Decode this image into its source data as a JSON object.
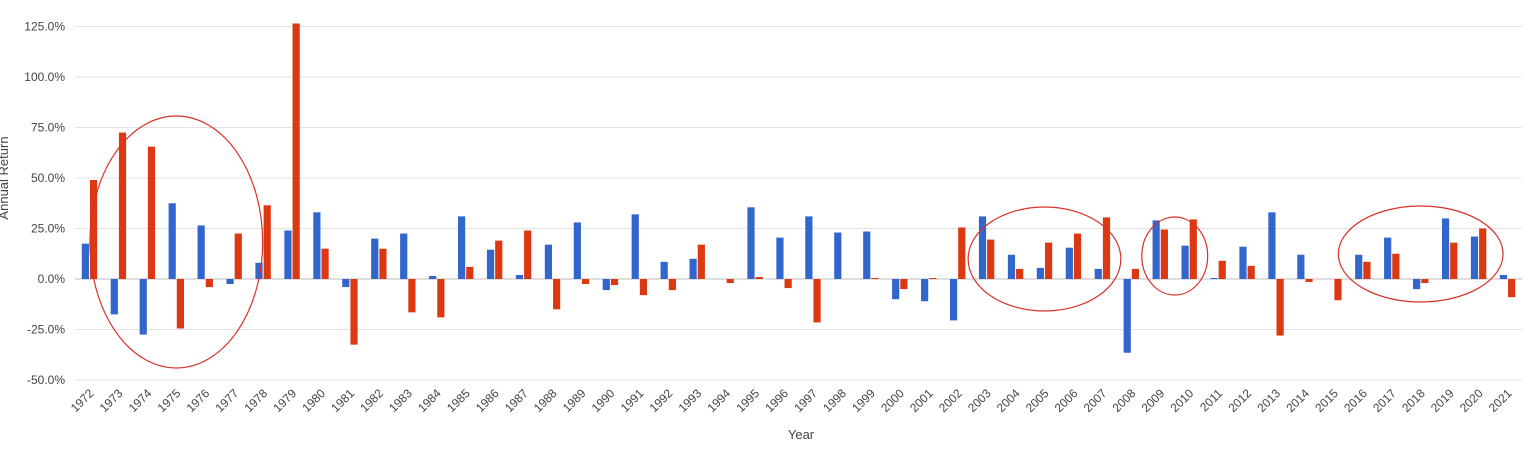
{
  "chart_data": {
    "type": "bar",
    "title": "",
    "xlabel": "Year",
    "ylabel": "Annual Return",
    "ylim": [
      -50,
      125
    ],
    "yticks": [
      "-50.0%",
      "-25.0%",
      "0.0%",
      "25.0%",
      "50.0%",
      "75.0%",
      "100.0%",
      "125.0%"
    ],
    "ytick_values": [
      -50,
      -25,
      0,
      25,
      50,
      75,
      100,
      125
    ],
    "grid": true,
    "categories": [
      "1972",
      "1973",
      "1974",
      "1975",
      "1976",
      "1977",
      "1978",
      "1979",
      "1980",
      "1981",
      "1982",
      "1983",
      "1984",
      "1985",
      "1986",
      "1987",
      "1988",
      "1989",
      "1990",
      "1991",
      "1992",
      "1993",
      "1994",
      "1995",
      "1996",
      "1997",
      "1998",
      "1999",
      "2000",
      "2001",
      "2002",
      "2003",
      "2004",
      "2005",
      "2006",
      "2007",
      "2008",
      "2009",
      "2010",
      "2011",
      "2012",
      "2013",
      "2014",
      "2015",
      "2016",
      "2017",
      "2018",
      "2019",
      "2020",
      "2021"
    ],
    "series": [
      {
        "color": "#3366cc",
        "values": [
          17.5,
          -17.5,
          -27.5,
          37.5,
          26.5,
          -2.5,
          8.0,
          24.0,
          33.0,
          -4.0,
          20.0,
          22.5,
          1.5,
          31.0,
          14.5,
          2.0,
          17.0,
          28.0,
          -5.5,
          32.0,
          8.5,
          10.0,
          0.0,
          35.5,
          20.5,
          31.0,
          23.0,
          23.5,
          -10.0,
          -11.0,
          -20.5,
          31.0,
          12.0,
          5.5,
          15.5,
          5.0,
          -36.5,
          29.0,
          16.5,
          0.5,
          16.0,
          33.0,
          12.0,
          0.0,
          12.0,
          20.5,
          -5.0,
          30.0,
          21.0,
          2.0
        ]
      },
      {
        "color": "#dc3912",
        "values": [
          49.0,
          72.5,
          65.5,
          -24.5,
          -4.0,
          22.5,
          36.5,
          126.5,
          15.0,
          -32.5,
          15.0,
          -16.5,
          -19.0,
          6.0,
          19.0,
          24.0,
          -15.0,
          -2.5,
          -3.0,
          -8.0,
          -5.5,
          17.0,
          -2.0,
          1.0,
          -4.5,
          -21.5,
          0.0,
          0.5,
          -5.0,
          0.5,
          25.5,
          19.5,
          5.0,
          18.0,
          22.5,
          30.5,
          5.0,
          24.5,
          29.5,
          9.0,
          6.5,
          -28.0,
          -1.5,
          -10.5,
          8.5,
          12.5,
          -2.0,
          18.0,
          25.0,
          -9.0
        ]
      }
    ],
    "annotations": [
      {
        "shape": "ellipse",
        "color": "#d9302a",
        "from": "1973",
        "to": "1977"
      },
      {
        "shape": "ellipse",
        "color": "#d9302a",
        "from": "2003",
        "to": "2007"
      },
      {
        "shape": "ellipse",
        "color": "#d9302a",
        "from": "2009",
        "to": "2010"
      },
      {
        "shape": "ellipse",
        "color": "#d9302a",
        "from": "2016",
        "to": "2020"
      }
    ]
  }
}
